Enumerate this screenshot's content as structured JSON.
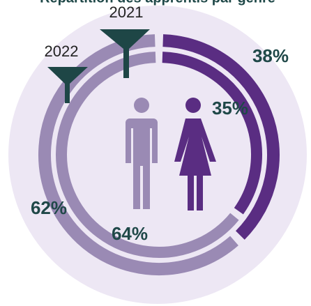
{
  "chart_data": {
    "type": "donut",
    "title": "Répartition des apprentis par genre",
    "series": [
      {
        "name": "2021",
        "values": [
          38,
          62
        ],
        "colors": [
          "#5a2d82",
          "#9a8ab4"
        ]
      },
      {
        "name": "2022",
        "values": [
          35,
          64
        ],
        "colors": [
          "#5a2d82",
          "#9a8ab4"
        ]
      }
    ]
  }
}
